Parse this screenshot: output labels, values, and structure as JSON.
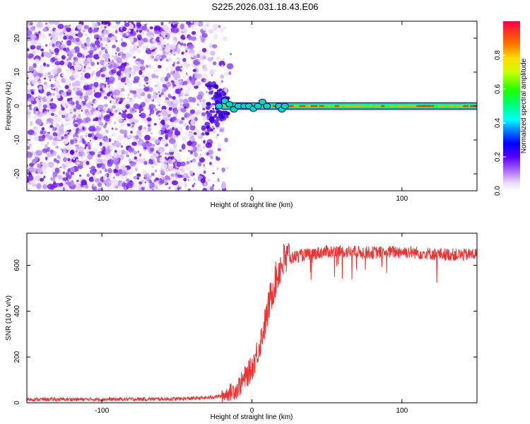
{
  "figure": {
    "title": "S225.2026.031.18.43.E06"
  },
  "chart_data": [
    {
      "type": "heatmap",
      "title": "S225.2026.031.18.43.E06",
      "xlabel": "Height of straight line (km)",
      "ylabel": "Frequency (Hz)",
      "xlim": [
        -150,
        150
      ],
      "ylim": [
        -25,
        25
      ],
      "x_ticks": [
        -100,
        0,
        100
      ],
      "y_ticks": [
        -20,
        -10,
        0,
        10,
        20
      ],
      "colorbar": {
        "label": "Normalized spectral amplitude",
        "range": [
          0,
          1
        ],
        "ticks": [
          0.0,
          0.2,
          0.4,
          0.6,
          0.8
        ]
      },
      "description_of_signal": {
        "noise_region_x": [
          -150,
          -20
        ],
        "line_center_freq": 0,
        "line_region_x": [
          -20,
          150
        ]
      }
    },
    {
      "type": "line",
      "xlabel": "Height of straight line (km)",
      "ylabel": "SNR (10 * v/v)",
      "xlim": [
        -150,
        150
      ],
      "ylim": [
        0,
        740
      ],
      "x_ticks": [
        -100,
        0,
        100
      ],
      "y_ticks": [
        0,
        200,
        400,
        600
      ],
      "color": "#ee3333",
      "series": [
        {
          "x": [
            -150,
            -100,
            -50,
            -30,
            -20,
            -10,
            0,
            5,
            10,
            12,
            15,
            18,
            20,
            25,
            30,
            40,
            50,
            60,
            80,
            100,
            120,
            140,
            150
          ],
          "y": [
            15,
            15,
            17,
            22,
            30,
            60,
            150,
            250,
            380,
            450,
            520,
            580,
            610,
            630,
            640,
            650,
            660,
            660,
            655,
            660,
            650,
            645,
            650
          ]
        }
      ]
    }
  ]
}
